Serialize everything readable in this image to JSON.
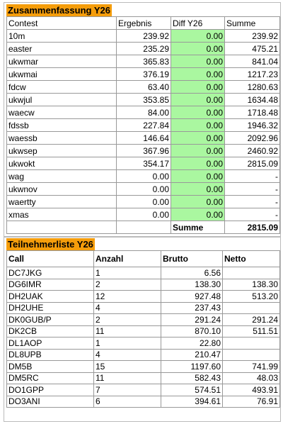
{
  "summary": {
    "title": "Zusammenfassung Y26",
    "columns": [
      "Contest",
      "Ergebnis",
      "Diff Y26",
      "Summe"
    ],
    "rows": [
      [
        "10m",
        "239.92",
        "0.00",
        "239.92"
      ],
      [
        "easter",
        "235.29",
        "0.00",
        "475.21"
      ],
      [
        "ukwmar",
        "365.83",
        "0.00",
        "841.04"
      ],
      [
        "ukwmai",
        "376.19",
        "0.00",
        "1217.23"
      ],
      [
        "fdcw",
        "63.40",
        "0.00",
        "1280.63"
      ],
      [
        "ukwjul",
        "353.85",
        "0.00",
        "1634.48"
      ],
      [
        "waecw",
        "84.00",
        "0.00",
        "1718.48"
      ],
      [
        "fdssb",
        "227.84",
        "0.00",
        "1946.32"
      ],
      [
        "waessb",
        "146.64",
        "0.00",
        "2092.96"
      ],
      [
        "ukwsep",
        "367.96",
        "0.00",
        "2460.92"
      ],
      [
        "ukwokt",
        "354.17",
        "0.00",
        "2815.09"
      ],
      [
        "wag",
        "0.00",
        "0.00",
        "-"
      ],
      [
        "ukwnov",
        "0.00",
        "0.00",
        "-"
      ],
      [
        "waertty",
        "0.00",
        "0.00",
        "-"
      ],
      [
        "xmas",
        "0.00",
        "0.00",
        "-"
      ]
    ],
    "total_label": "Summe",
    "total": "2815.09"
  },
  "participants": {
    "title": "Teilnehmerliste Y26",
    "columns": [
      "Call",
      "Anzahl",
      "Brutto",
      "Netto"
    ],
    "rows": [
      [
        "DC7JKG",
        "1",
        "6.56"
      ],
      [
        "DG6IMR",
        "2",
        "138.30",
        "138.30"
      ],
      [
        "DH2UAK",
        "12",
        "927.48",
        "513.20"
      ],
      [
        "DH2UHE",
        "4",
        "237.43"
      ],
      [
        "DK0GUB/P",
        "2",
        "291.24",
        "291.24"
      ],
      [
        "DK2CB",
        "11",
        "870.10",
        "511.51"
      ],
      [
        "DL1AOP",
        "1",
        "22.80"
      ],
      [
        "DL8UPB",
        "4",
        "210.47"
      ],
      [
        "DM5B",
        "15",
        "1197.60",
        "741.99"
      ],
      [
        "DM5RC",
        "11",
        "582.43",
        "48.03"
      ],
      [
        "DO1GPP",
        "7",
        "574.51",
        "493.91"
      ],
      [
        "DO3ANI",
        "6",
        "394.61",
        "76.91"
      ]
    ]
  }
}
